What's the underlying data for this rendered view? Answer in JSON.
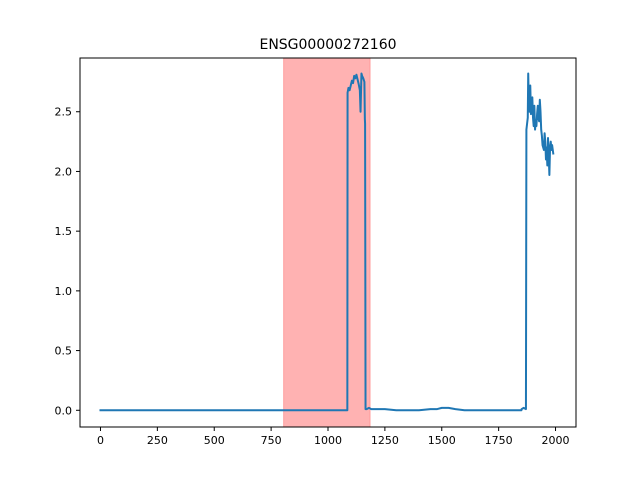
{
  "chart_data": {
    "type": "line",
    "title": "ENSG00000272160",
    "xlabel": "",
    "ylabel": "",
    "xlim": [
      -90,
      2090
    ],
    "ylim": [
      -0.14,
      2.95
    ],
    "xticks": [
      0,
      250,
      500,
      750,
      1000,
      1250,
      1500,
      1750,
      2000
    ],
    "xtick_labels": [
      "0",
      "250",
      "500",
      "750",
      "1000",
      "1250",
      "1500",
      "1750",
      "2000"
    ],
    "yticks": [
      0.0,
      0.5,
      1.0,
      1.5,
      2.0,
      2.5
    ],
    "ytick_labels": [
      "0.0",
      "0.5",
      "1.0",
      "1.5",
      "2.0",
      "2.5"
    ],
    "grid": false,
    "highlight_region": {
      "x_start": 805,
      "x_end": 1185,
      "color": "#ff7f7f"
    },
    "series": [
      {
        "color": "#1f77b4",
        "x": [
          0,
          1085,
          1086,
          1090,
          1095,
          1100,
          1105,
          1110,
          1115,
          1120,
          1125,
          1130,
          1135,
          1140,
          1143,
          1147,
          1150,
          1155,
          1160,
          1162,
          1163,
          1165,
          1170,
          1180,
          1190,
          1200,
          1210,
          1250,
          1300,
          1350,
          1400,
          1450,
          1480,
          1500,
          1530,
          1560,
          1600,
          1650,
          1700,
          1750,
          1800,
          1850,
          1851,
          1860,
          1870,
          1872,
          1875,
          1878,
          1880,
          1883,
          1886,
          1889,
          1892,
          1895,
          1898,
          1901,
          1904,
          1907,
          1910,
          1913,
          1916,
          1919,
          1922,
          1925,
          1928,
          1931,
          1934,
          1937,
          1940,
          1943,
          1946,
          1949,
          1952,
          1955,
          1958,
          1961,
          1964,
          1967,
          1970,
          1973,
          1976,
          1979,
          1982,
          1985,
          1990
        ],
        "y": [
          0.0,
          0.0,
          2.66,
          2.7,
          2.68,
          2.72,
          2.76,
          2.74,
          2.8,
          2.78,
          2.81,
          2.77,
          2.73,
          2.68,
          2.5,
          2.82,
          2.8,
          2.78,
          2.75,
          2.44,
          2.4,
          0.01,
          0.01,
          0.02,
          0.01,
          0.01,
          0.01,
          0.01,
          0.0,
          0.0,
          0.0,
          0.01,
          0.01,
          0.02,
          0.02,
          0.01,
          0.0,
          0.0,
          0.0,
          0.0,
          0.0,
          0.0,
          0.01,
          0.02,
          0.01,
          2.35,
          2.4,
          2.45,
          2.82,
          2.55,
          2.5,
          2.72,
          2.48,
          2.58,
          2.62,
          2.45,
          2.38,
          2.55,
          2.35,
          2.43,
          2.38,
          2.48,
          2.55,
          2.45,
          2.42,
          2.6,
          2.5,
          2.35,
          2.3,
          2.22,
          2.2,
          2.18,
          2.32,
          2.25,
          2.1,
          2.2,
          2.05,
          2.28,
          2.15,
          1.97,
          2.2,
          2.25,
          2.18,
          2.22,
          2.15
        ]
      }
    ]
  }
}
